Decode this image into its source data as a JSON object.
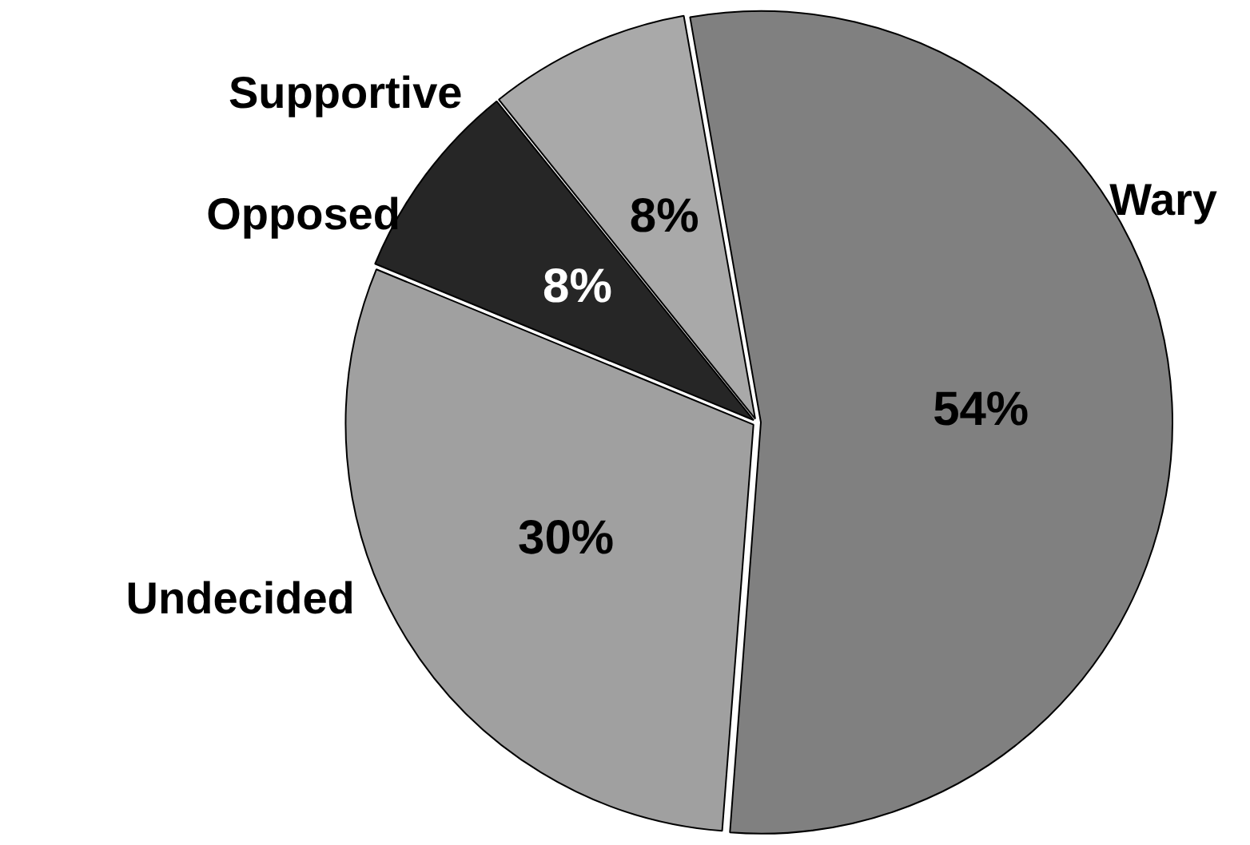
{
  "chart_data": {
    "type": "pie",
    "categories": [
      "Wary",
      "Undecided",
      "Opposed",
      "Supportive"
    ],
    "values": [
      54,
      30,
      8,
      8
    ],
    "colors": [
      "#808080",
      "#a0a0a0",
      "#262626",
      "#a9a9a9"
    ],
    "value_labels": [
      "54%",
      "30%",
      "8%",
      "8%"
    ]
  }
}
